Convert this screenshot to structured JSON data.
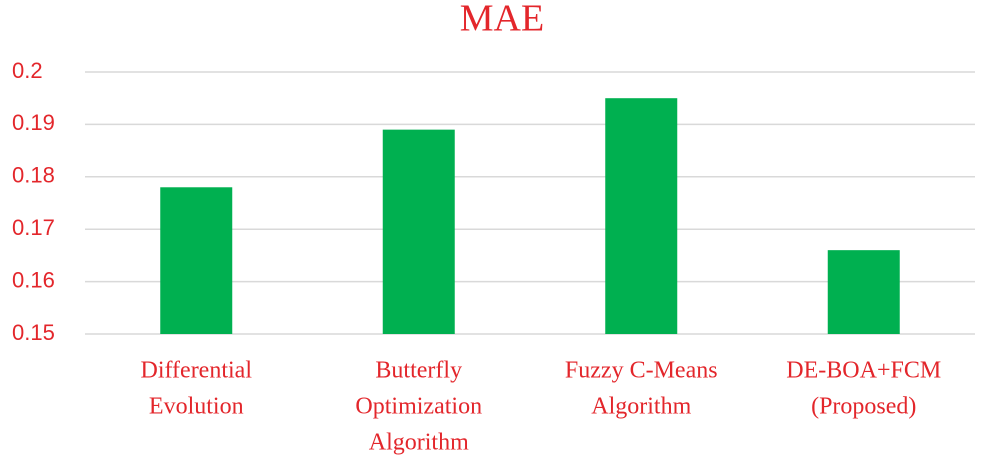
{
  "chart_data": {
    "type": "bar",
    "title": "MAE",
    "categories": [
      [
        "Differential",
        "Evolution"
      ],
      [
        "Butterfly",
        "Optimization",
        "Algorithm"
      ],
      [
        "Fuzzy C-Means",
        "Algorithm"
      ],
      [
        "DE-BOA+FCM",
        "(Proposed)"
      ]
    ],
    "values": [
      0.178,
      0.189,
      0.195,
      0.166
    ],
    "color": "#00b050",
    "ylim": [
      0.15,
      0.2
    ],
    "yticks": [
      0.15,
      0.16,
      0.17,
      0.18,
      0.19,
      0.2
    ],
    "grid": true
  }
}
